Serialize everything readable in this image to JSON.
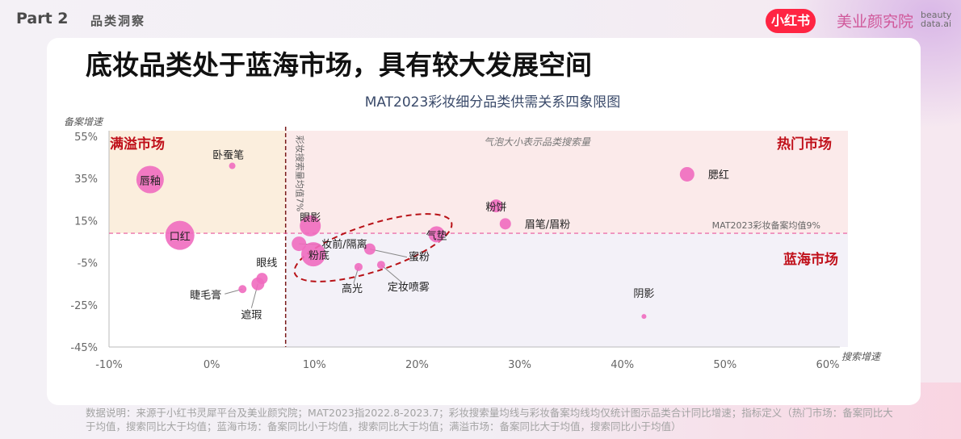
{
  "header": {
    "part": "Part 2",
    "section": "品类洞察",
    "badge": "小红书",
    "institute": "美业颜究院",
    "brand_line1": "beauty",
    "brand_line2": "data.ai"
  },
  "page_title": "底妆品类处于蓝海市场，具有较大发展空间",
  "footnote": "数据说明：来源于小红书灵犀平台及美业颜究院；MAT2023指2022.8-2023.7；彩妆搜索量均线与彩妆备案均线均仅统计图示品类合计同比增速；指标定义（热门市场：备案同比大于均值，搜索同比大于均值；蓝海市场：备案同比小于均值，搜索同比大于均值；满溢市场：备案同比大于均值，搜索同比小于均值）",
  "colors": {
    "bubble": "#f06bbf",
    "overflow_zone": "#fbeedd",
    "hot_zone": "#fbeaea",
    "blue_zone": "#f3f1f8",
    "quadrant_label": "#c0101a",
    "search_avg_line": "#7a1a1a",
    "filing_avg_line": "#e8579c"
  },
  "chart_data": {
    "type": "scatter",
    "title": "MAT2023彩妆细分品类供需关系四象限图",
    "xlabel": "搜索增速",
    "ylabel": "备案增速",
    "xlim": [
      -10,
      60
    ],
    "ylim": [
      -45,
      55
    ],
    "xticks": [
      -10,
      0,
      10,
      20,
      30,
      40,
      50,
      60
    ],
    "xtick_labels": [
      "-10%",
      "0%",
      "10%",
      "20%",
      "30%",
      "40%",
      "50%",
      "60%"
    ],
    "yticks": [
      55,
      35,
      15,
      -5,
      -25,
      -45
    ],
    "ytick_labels": [
      "55%",
      "35%",
      "15%",
      "-5%",
      "-25%",
      "-45%"
    ],
    "search_avg": 7.2,
    "search_avg_label": "彩妆搜索量均值7%",
    "filing_avg": 9,
    "filing_avg_label": "MAT2023彩妆备案均值9%",
    "bubble_note": "气泡大小表示品类搜索量",
    "quadrants": {
      "overflow": "满溢市场",
      "hot": "热门市场",
      "blue": "蓝海市场"
    },
    "points": [
      {
        "name": "唇釉",
        "x": -6.0,
        "y": 34.5,
        "size": 17
      },
      {
        "name": "卧蚕笔",
        "x": 2.0,
        "y": 41.0,
        "size": 4
      },
      {
        "name": "口红",
        "x": -3.1,
        "y": 8.0,
        "size": 18
      },
      {
        "name": "眼线",
        "x": 4.9,
        "y": -12.5,
        "size": 7
      },
      {
        "name": "遮瑕",
        "x": 4.5,
        "y": -15.0,
        "size": 8
      },
      {
        "name": "睫毛膏",
        "x": 3.0,
        "y": -17.5,
        "size": 5
      },
      {
        "name": "眼影",
        "x": 9.6,
        "y": 12.5,
        "size": 13
      },
      {
        "name": "妆前/隔离",
        "x": 8.5,
        "y": 4.0,
        "size": 9
      },
      {
        "name": "粉底",
        "x": 9.9,
        "y": -1.0,
        "size": 15
      },
      {
        "name": "蜜粉",
        "x": 15.4,
        "y": 1.5,
        "size": 7
      },
      {
        "name": "高光",
        "x": 14.3,
        "y": -7.0,
        "size": 5
      },
      {
        "name": "定妆喷雾",
        "x": 16.5,
        "y": -6.0,
        "size": 5
      },
      {
        "name": "气垫",
        "x": 21.9,
        "y": 8.5,
        "size": 10
      },
      {
        "name": "粉饼",
        "x": 27.7,
        "y": 22.0,
        "size": 8
      },
      {
        "name": "眉笔/眉粉",
        "x": 28.6,
        "y": 13.5,
        "size": 7
      },
      {
        "name": "腮红",
        "x": 46.3,
        "y": 37.0,
        "size": 9
      },
      {
        "name": "阴影",
        "x": 42.1,
        "y": -30.5,
        "size": 3
      }
    ]
  }
}
